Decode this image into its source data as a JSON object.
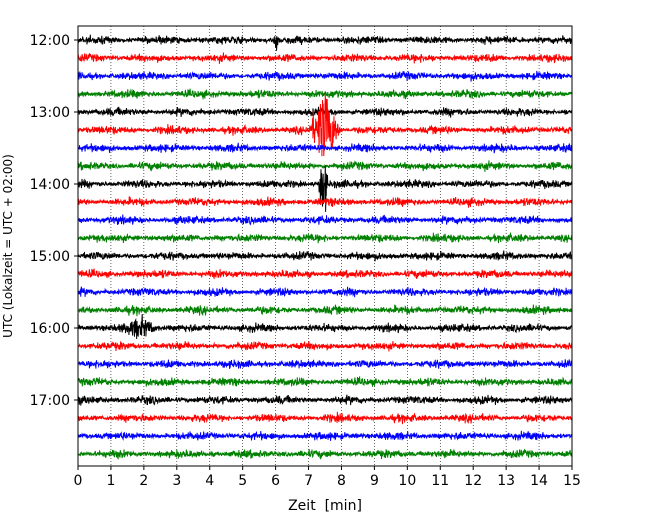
{
  "chart_data": {
    "type": "line",
    "title": "",
    "xlabel": "Zeit  [min]",
    "ylabel": "UTC (Lokalzeit = UTC + 02:00)",
    "xlim": [
      0,
      15
    ],
    "x_ticks": [
      0,
      1,
      2,
      3,
      4,
      5,
      6,
      7,
      8,
      9,
      10,
      11,
      12,
      13,
      14,
      15
    ],
    "grid": "vertical dotted",
    "ytick_labels": [
      "12:00",
      "13:00",
      "14:00",
      "15:00",
      "16:00",
      "17:00"
    ],
    "ytick_trace_index": [
      0,
      4,
      8,
      12,
      16,
      20
    ],
    "trace_color_cycle": [
      "#000000",
      "#ff0000",
      "#0000ff",
      "#008000"
    ],
    "trace_start_times": [
      "12:00",
      "12:15",
      "12:30",
      "12:45",
      "13:00",
      "13:15",
      "13:30",
      "13:45",
      "14:00",
      "14:15",
      "14:30",
      "14:45",
      "15:00",
      "15:15",
      "15:30",
      "15:45",
      "16:00",
      "16:15",
      "16:30",
      "16:45",
      "17:00",
      "17:15",
      "17:30",
      "17:45"
    ],
    "events": [
      {
        "trace_time": "13:15",
        "start_min": 7.0,
        "end_min": 8.0,
        "amplitude": "high"
      },
      {
        "trace_time": "14:00",
        "start_min": 7.3,
        "end_min": 7.6,
        "amplitude": "high"
      },
      {
        "trace_time": "16:00",
        "start_min": 1.3,
        "end_min": 2.5,
        "amplitude": "medium"
      },
      {
        "trace_time": "12:00",
        "start_min": 5.95,
        "end_min": 6.1,
        "amplitude": "medium"
      }
    ]
  }
}
